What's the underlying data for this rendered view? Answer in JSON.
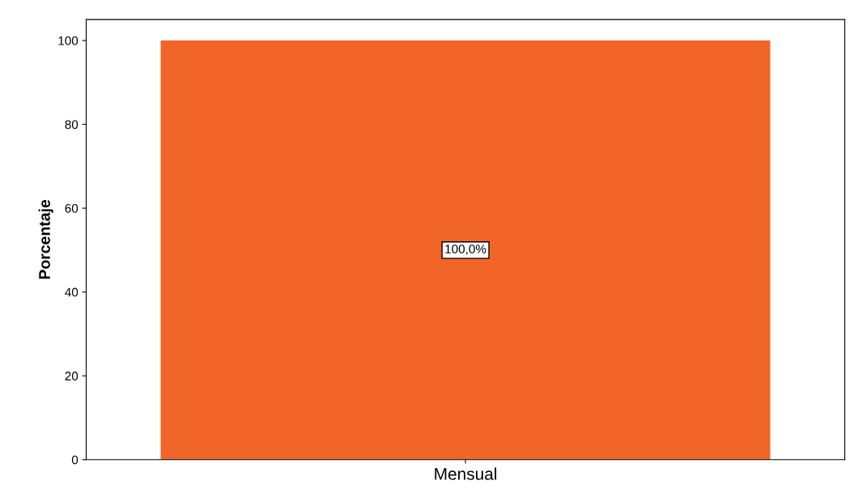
{
  "chart_data": {
    "type": "bar",
    "ylabel": "Porcentaje",
    "categories": [
      "Mensual"
    ],
    "values": [
      100
    ],
    "value_labels": [
      "100,0%"
    ],
    "color": "#f26529",
    "ylim": [
      0,
      105
    ],
    "yticks": [
      0,
      20,
      40,
      60,
      80,
      100
    ],
    "grid": false
  }
}
